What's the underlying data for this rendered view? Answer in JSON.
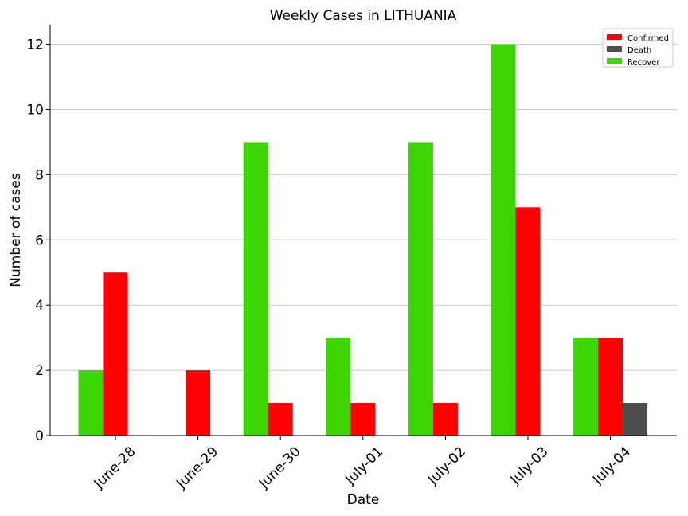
{
  "chart_data": {
    "type": "bar",
    "title": "Weekly Cases in LITHUANIA",
    "xlabel": "Date",
    "ylabel": "Number of cases",
    "categories": [
      "June-28",
      "June-29",
      "June-30",
      "July-01",
      "July-02",
      "July-03",
      "July-04"
    ],
    "series": [
      {
        "name": "Recover",
        "color": "#3dd605",
        "values": [
          2,
          0,
          9,
          3,
          9,
          12,
          3
        ]
      },
      {
        "name": "Confirmed",
        "color": "#ff0000",
        "values": [
          5,
          2,
          1,
          1,
          1,
          7,
          3
        ]
      },
      {
        "name": "Death",
        "color": "#4d4d4d",
        "values": [
          0,
          0,
          0,
          0,
          0,
          0,
          1
        ]
      }
    ],
    "legend_order": [
      "Confirmed",
      "Death",
      "Recover"
    ],
    "ylim": [
      0,
      12.6
    ],
    "yticks": [
      0,
      2,
      4,
      6,
      8,
      10,
      12
    ],
    "grid": "horizontal",
    "legend_position": "top-right"
  }
}
